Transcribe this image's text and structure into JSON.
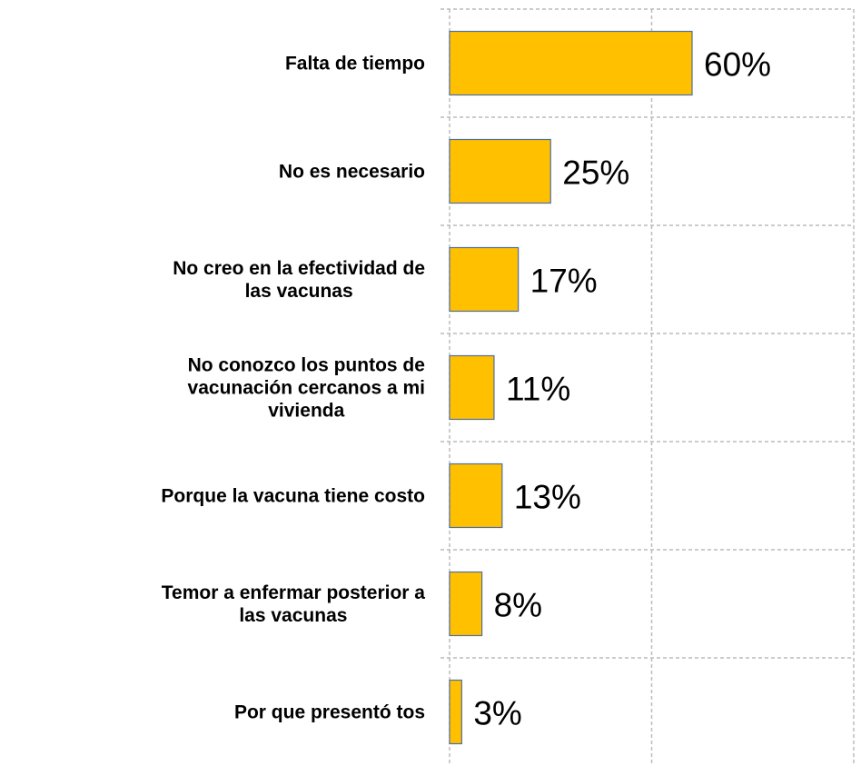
{
  "chart_data": {
    "type": "barh",
    "categories": [
      "Falta de tiempo",
      "No es necesario",
      "No creo en la efectividad de\nlas vacunas",
      "No conozco los puntos de\nvacunación cercanos a mi\nvivienda",
      "Porque la vacuna tiene costo",
      "Temor a enfermar posterior a\nlas vacunas",
      "Por que presentó tos"
    ],
    "values": [
      60,
      25,
      17,
      11,
      13,
      8,
      3
    ],
    "value_labels": [
      "60%",
      "25%",
      "17%",
      "11%",
      "13%",
      "8%",
      "3%"
    ],
    "color": "#FFC000",
    "xlim": [
      0,
      100
    ],
    "xticks": [
      0,
      50,
      100
    ],
    "grid": true
  }
}
